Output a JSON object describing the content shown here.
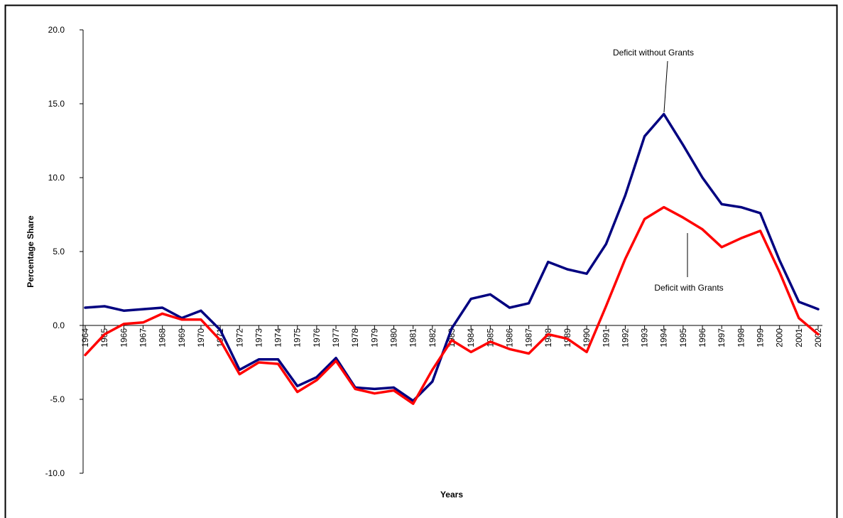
{
  "chart_data": {
    "type": "line",
    "x_label": "Years",
    "y_label": "Percentage Share",
    "categories": [
      "1964",
      "1965",
      "1966",
      "1967",
      "1968",
      "1969",
      "1970",
      "1971",
      "1972",
      "1973",
      "1974",
      "1975",
      "1976",
      "1977",
      "1978",
      "1979",
      "1980",
      "1981",
      "1982",
      "1983",
      "1984",
      "1985",
      "1986",
      "1987",
      "1988",
      "1989",
      "1990",
      "1991",
      "1992",
      "1993",
      "1994",
      "1995",
      "1996",
      "1997",
      "1998",
      "1999",
      "2000",
      "2001",
      "2002"
    ],
    "series": [
      {
        "name": "Deficit without Grants",
        "color": "#000080",
        "values": [
          1.2,
          1.3,
          1.0,
          1.1,
          1.2,
          0.5,
          1.0,
          -0.3,
          -3.0,
          -2.3,
          -2.3,
          -4.1,
          -3.5,
          -2.2,
          -4.2,
          -4.3,
          -4.2,
          -5.1,
          -3.8,
          -0.2,
          1.8,
          2.1,
          1.2,
          1.5,
          4.3,
          3.8,
          3.5,
          5.5,
          8.8,
          12.8,
          14.3,
          12.2,
          10.0,
          8.2,
          8.0,
          7.6,
          4.4,
          1.6,
          1.1
        ]
      },
      {
        "name": "Deficit with Grants",
        "color": "#ff0000",
        "values": [
          -2.0,
          -0.6,
          0.1,
          0.2,
          0.8,
          0.4,
          0.4,
          -1.0,
          -3.3,
          -2.5,
          -2.6,
          -4.5,
          -3.7,
          -2.4,
          -4.3,
          -4.6,
          -4.4,
          -5.3,
          -3.0,
          -1.0,
          -1.8,
          -1.1,
          -1.6,
          -1.9,
          -0.6,
          -0.9,
          -1.8,
          1.3,
          4.5,
          7.2,
          8.0,
          7.3,
          6.5,
          5.3,
          5.9,
          6.4,
          3.6,
          0.5,
          -0.6
        ]
      }
    ],
    "ylim": [
      -10,
      20
    ],
    "yticks": [
      {
        "value": -10,
        "label": "-10.0"
      },
      {
        "value": -5,
        "label": "-5.0"
      },
      {
        "value": 0,
        "label": "0.0"
      },
      {
        "value": 5,
        "label": "5.0"
      },
      {
        "value": 10,
        "label": "10.0"
      },
      {
        "value": 15,
        "label": "15.0"
      },
      {
        "value": 20,
        "label": "20.0"
      }
    ],
    "grid": false
  }
}
